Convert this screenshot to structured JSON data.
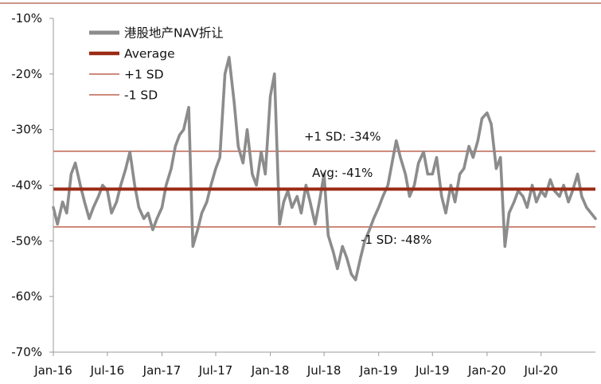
{
  "chart_data": {
    "type": "line",
    "title": "",
    "xlabel": "",
    "ylabel": "",
    "ylim": [
      -70,
      -10
    ],
    "y_ticks": [
      -10,
      -20,
      -30,
      -40,
      -50,
      -60,
      -70
    ],
    "y_tick_labels": [
      "-10%",
      "-20%",
      "-30%",
      "-40%",
      "-50%",
      "-60%",
      "-70%"
    ],
    "x_range": [
      "2016-01-01",
      "2020-12-31"
    ],
    "x_ticks": [
      "2016-01-01",
      "2016-07-01",
      "2017-01-01",
      "2017-07-01",
      "2018-01-01",
      "2018-07-01",
      "2019-01-01",
      "2019-07-01",
      "2020-01-01",
      "2020-07-01"
    ],
    "x_tick_labels": [
      "Jan-16",
      "Jul-16",
      "Jan-17",
      "Jul-17",
      "Jan-18",
      "Jul-18",
      "Jan-19",
      "Jul-19",
      "Jan-20",
      "Jul-20"
    ],
    "grid": false,
    "legend_position": "top-left",
    "legend": [
      "港股地产NAV折让",
      "Average",
      "+1 SD",
      "-1 SD"
    ],
    "colors": {
      "series": "#8c8c8c",
      "average": "#9b2a14",
      "sd": "#b0452a",
      "axis": "#9a9a9a"
    },
    "series": [
      {
        "name": "港股地产NAV折让",
        "x": [
          "2016-01-01",
          "2016-01-15",
          "2016-02-01",
          "2016-02-15",
          "2016-03-01",
          "2016-03-15",
          "2016-04-01",
          "2016-04-15",
          "2016-05-01",
          "2016-05-15",
          "2016-06-01",
          "2016-06-15",
          "2016-07-01",
          "2016-07-15",
          "2016-08-01",
          "2016-08-15",
          "2016-09-01",
          "2016-09-15",
          "2016-10-01",
          "2016-10-15",
          "2016-11-01",
          "2016-11-15",
          "2016-12-01",
          "2016-12-15",
          "2017-01-01",
          "2017-01-15",
          "2017-02-01",
          "2017-02-15",
          "2017-03-01",
          "2017-03-15",
          "2017-04-01",
          "2017-04-15",
          "2017-05-01",
          "2017-05-15",
          "2017-06-01",
          "2017-06-15",
          "2017-07-01",
          "2017-07-15",
          "2017-08-01",
          "2017-08-15",
          "2017-09-01",
          "2017-09-15",
          "2017-10-01",
          "2017-10-15",
          "2017-11-01",
          "2017-11-15",
          "2017-12-01",
          "2017-12-15",
          "2018-01-01",
          "2018-01-15",
          "2018-02-01",
          "2018-02-15",
          "2018-03-01",
          "2018-03-15",
          "2018-04-01",
          "2018-04-15",
          "2018-05-01",
          "2018-05-15",
          "2018-06-01",
          "2018-06-15",
          "2018-07-01",
          "2018-07-15",
          "2018-08-01",
          "2018-08-15",
          "2018-09-01",
          "2018-09-15",
          "2018-10-01",
          "2018-10-15",
          "2018-11-01",
          "2018-11-15",
          "2018-12-01",
          "2018-12-15",
          "2019-01-01",
          "2019-01-15",
          "2019-02-01",
          "2019-02-15",
          "2019-03-01",
          "2019-03-15",
          "2019-04-01",
          "2019-04-15",
          "2019-05-01",
          "2019-05-15",
          "2019-06-01",
          "2019-06-15",
          "2019-07-01",
          "2019-07-15",
          "2019-08-01",
          "2019-08-15",
          "2019-09-01",
          "2019-09-15",
          "2019-10-01",
          "2019-10-15",
          "2019-11-01",
          "2019-11-15",
          "2019-12-01",
          "2019-12-15",
          "2020-01-01",
          "2020-01-15",
          "2020-02-01",
          "2020-02-15",
          "2020-03-01",
          "2020-03-15",
          "2020-04-01",
          "2020-04-15",
          "2020-05-01",
          "2020-05-15",
          "2020-06-01",
          "2020-06-15",
          "2020-07-01",
          "2020-07-15",
          "2020-08-01",
          "2020-08-15",
          "2020-09-01",
          "2020-09-15",
          "2020-10-01",
          "2020-10-15",
          "2020-11-01",
          "2020-11-15",
          "2020-12-01",
          "2020-12-31"
        ],
        "values": [
          -44,
          -47,
          -43,
          -45,
          -38,
          -36,
          -40,
          -43,
          -46,
          -44,
          -42,
          -40,
          -41,
          -45,
          -43,
          -40,
          -37,
          -34,
          -40,
          -44,
          -46,
          -45,
          -48,
          -46,
          -44,
          -40,
          -37,
          -33,
          -31,
          -30,
          -26,
          -51,
          -48,
          -45,
          -43,
          -40,
          -37,
          -35,
          -20,
          -17,
          -25,
          -33,
          -36,
          -30,
          -38,
          -40,
          -34,
          -38,
          -24,
          -20,
          -47,
          -43,
          -41,
          -44,
          -42,
          -45,
          -40,
          -43,
          -47,
          -43,
          -38,
          -49,
          -52,
          -55,
          -51,
          -53,
          -56,
          -57,
          -53,
          -50,
          -48,
          -46,
          -44,
          -42,
          -40,
          -36,
          -32,
          -35,
          -38,
          -42,
          -40,
          -36,
          -34,
          -38,
          -38,
          -35,
          -42,
          -45,
          -40,
          -43,
          -38,
          -37,
          -33,
          -35,
          -32,
          -28,
          -27,
          -29,
          -37,
          -35,
          -51,
          -45,
          -43,
          -41,
          -42,
          -44,
          -40,
          -43,
          -41,
          -42,
          -39,
          -41,
          -42,
          -40,
          -43,
          -41,
          -38,
          -42,
          -44,
          -46
        ]
      },
      {
        "name": "Average",
        "values": [
          -40.7,
          -40.7
        ]
      },
      {
        "name": "+1 SD",
        "values": [
          -33.9,
          -33.9
        ]
      },
      {
        "name": "-1 SD",
        "values": [
          -47.5,
          -47.5
        ]
      }
    ],
    "annotations": [
      {
        "text": "+1 SD: -34%",
        "x": "2018-09-01",
        "y": -32.0
      },
      {
        "text": "Avg: -41%",
        "x": "2018-09-01",
        "y": -38.5
      },
      {
        "text": "-1 SD: -48%",
        "x": "2019-03-01",
        "y": -50.5
      }
    ]
  }
}
